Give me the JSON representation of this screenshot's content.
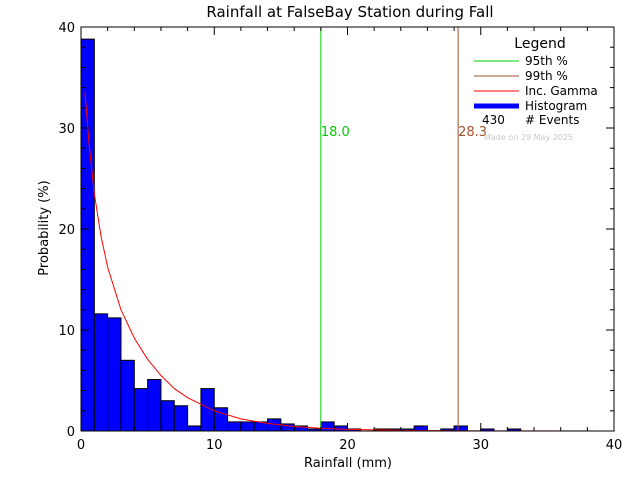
{
  "chart_data": {
    "type": "bar",
    "title": "Rainfall at FalseBay Station during Fall",
    "xlabel": "Rainfall (mm)",
    "ylabel": "Probability (%)",
    "xlim": [
      0,
      40
    ],
    "ylim": [
      0,
      40
    ],
    "xticks": [
      "0",
      "10",
      "20",
      "30",
      "40"
    ],
    "yticks": [
      "0",
      "10",
      "20",
      "30",
      "40"
    ],
    "bin_width": 1,
    "histogram": [
      {
        "x": 0,
        "y": 38.8
      },
      {
        "x": 1,
        "y": 11.6
      },
      {
        "x": 2,
        "y": 11.2
      },
      {
        "x": 3,
        "y": 7.0
      },
      {
        "x": 4,
        "y": 4.2
      },
      {
        "x": 5,
        "y": 5.1
      },
      {
        "x": 6,
        "y": 3.0
      },
      {
        "x": 7,
        "y": 2.5
      },
      {
        "x": 8,
        "y": 0.5
      },
      {
        "x": 9,
        "y": 4.2
      },
      {
        "x": 10,
        "y": 2.3
      },
      {
        "x": 11,
        "y": 0.9
      },
      {
        "x": 12,
        "y": 0.9
      },
      {
        "x": 13,
        "y": 0.9
      },
      {
        "x": 14,
        "y": 1.2
      },
      {
        "x": 15,
        "y": 0.7
      },
      {
        "x": 16,
        "y": 0.5
      },
      {
        "x": 17,
        "y": 0.2
      },
      {
        "x": 18,
        "y": 0.9
      },
      {
        "x": 19,
        "y": 0.5
      },
      {
        "x": 20,
        "y": 0.2
      },
      {
        "x": 21,
        "y": 0.0
      },
      {
        "x": 22,
        "y": 0.2
      },
      {
        "x": 23,
        "y": 0.2
      },
      {
        "x": 24,
        "y": 0.2
      },
      {
        "x": 25,
        "y": 0.5
      },
      {
        "x": 26,
        "y": 0.0
      },
      {
        "x": 27,
        "y": 0.2
      },
      {
        "x": 28,
        "y": 0.5
      },
      {
        "x": 29,
        "y": 0.0
      },
      {
        "x": 30,
        "y": 0.2
      },
      {
        "x": 31,
        "y": 0.0
      },
      {
        "x": 32,
        "y": 0.2
      }
    ],
    "gamma_curve": [
      [
        0.3,
        33.5
      ],
      [
        0.6,
        28.5
      ],
      [
        1,
        23.5
      ],
      [
        1.5,
        19.3
      ],
      [
        2,
        16.2
      ],
      [
        3,
        12.0
      ],
      [
        4,
        9.2
      ],
      [
        5,
        7.1
      ],
      [
        6,
        5.5
      ],
      [
        7,
        4.2
      ],
      [
        8,
        3.3
      ],
      [
        10,
        2.0
      ],
      [
        12,
        1.2
      ],
      [
        14,
        0.75
      ],
      [
        16,
        0.45
      ],
      [
        18,
        0.27
      ],
      [
        20,
        0.16
      ],
      [
        25,
        0.05
      ],
      [
        30,
        0.01
      ],
      [
        40,
        0.0
      ]
    ],
    "percentile_95": {
      "value": 18.0,
      "label": "18.0",
      "color": "#00cc00"
    },
    "percentile_99": {
      "value": 28.3,
      "label": "28.3",
      "color": "#a0522d"
    },
    "colors": {
      "histogram": "#0000ff",
      "gamma": "#ff0000",
      "axes": "#000000"
    },
    "legend": {
      "title": "Legend",
      "entries": [
        "95th %",
        "99th %",
        "Inc. Gamma",
        "Histogram"
      ],
      "events_count": "430",
      "events_label": "# Events",
      "note": "Made on 29 May 2025"
    }
  }
}
